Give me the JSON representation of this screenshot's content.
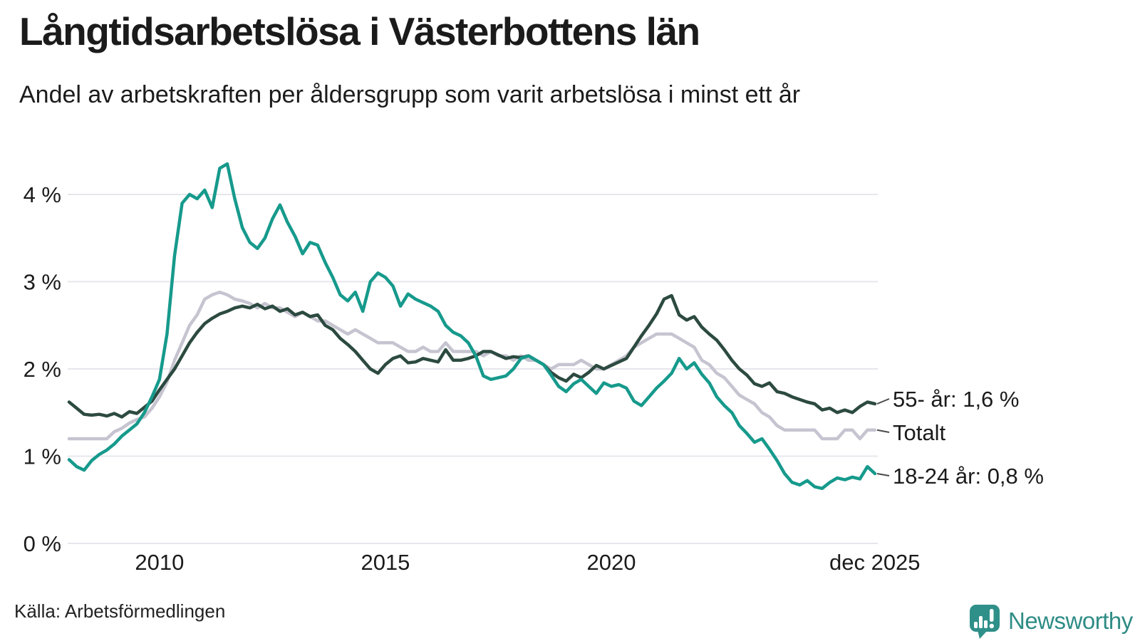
{
  "header": {
    "title": "Långtidsarbetslösa i Västerbottens län",
    "subtitle": "Andel av arbetskraften per åldersgrupp som varit arbetslösa i minst ett år"
  },
  "footer": {
    "source": "Källa: Arbetsförmedlingen",
    "brand": "Newsworthy"
  },
  "colors": {
    "teal_series": "#169a8c",
    "dark_green_series": "#2c4a40",
    "gray_series": "#c6c4d0",
    "gridline": "#e7e6ec",
    "text": "#1b1b1b",
    "connector": "#4a4a4a",
    "logo_teal": "#2f9089",
    "logo_text": "#2e8c85"
  },
  "chart_data": {
    "type": "line",
    "title": "Långtidsarbetslösa i Västerbottens län",
    "subtitle": "Andel av arbetskraften per åldersgrupp som varit arbetslösa i minst ett år",
    "unit": "%",
    "grid": true,
    "legend_position": "right-end-labels",
    "x_start_year": 2008.0,
    "x_step_years": 0.1667,
    "x_end_label": "dec 2025",
    "ylim": [
      0,
      4.7
    ],
    "y_ticks": [
      {
        "value": 0,
        "label": "0 %"
      },
      {
        "value": 1,
        "label": "1 %"
      },
      {
        "value": 2,
        "label": "2 %"
      },
      {
        "value": 3,
        "label": "3 %"
      },
      {
        "value": 4,
        "label": "4 %"
      }
    ],
    "x_ticks": [
      {
        "year": 2010.0,
        "label": "2010"
      },
      {
        "year": 2015.0,
        "label": "2015"
      },
      {
        "year": 2020.0,
        "label": "2020"
      },
      {
        "year": 2025.83,
        "label": "dec 2025"
      }
    ],
    "series": [
      {
        "name": "Totalt",
        "end_label": "Totalt",
        "end_value_text": "",
        "color": "#c6c4d0",
        "values": [
          1.2,
          1.2,
          1.2,
          1.2,
          1.2,
          1.2,
          1.28,
          1.32,
          1.38,
          1.42,
          1.45,
          1.55,
          1.68,
          1.85,
          2.1,
          2.3,
          2.5,
          2.62,
          2.8,
          2.85,
          2.88,
          2.85,
          2.8,
          2.78,
          2.75,
          2.7,
          2.75,
          2.7,
          2.7,
          2.65,
          2.6,
          2.65,
          2.6,
          2.55,
          2.55,
          2.5,
          2.45,
          2.4,
          2.45,
          2.4,
          2.35,
          2.3,
          2.3,
          2.3,
          2.25,
          2.2,
          2.2,
          2.25,
          2.2,
          2.2,
          2.3,
          2.2,
          2.2,
          2.2,
          2.2,
          2.15,
          2.2,
          2.15,
          2.15,
          2.1,
          2.15,
          2.1,
          2.1,
          2.05,
          2.0,
          2.05,
          2.05,
          2.05,
          2.1,
          2.05,
          2.0,
          2.0,
          2.05,
          2.1,
          2.15,
          2.25,
          2.3,
          2.35,
          2.4,
          2.4,
          2.4,
          2.35,
          2.3,
          2.25,
          2.1,
          2.05,
          1.95,
          1.9,
          1.8,
          1.7,
          1.65,
          1.6,
          1.5,
          1.45,
          1.35,
          1.3,
          1.3,
          1.3,
          1.3,
          1.3,
          1.2,
          1.2,
          1.2,
          1.3,
          1.3,
          1.2,
          1.3,
          1.3
        ]
      },
      {
        "name": "55- år",
        "end_label": "55- år: 1,6 %",
        "end_value_text": "1,6 %",
        "color": "#2c4a40",
        "values": [
          1.62,
          1.55,
          1.48,
          1.47,
          1.48,
          1.46,
          1.49,
          1.45,
          1.51,
          1.49,
          1.56,
          1.63,
          1.76,
          1.88,
          2.0,
          2.15,
          2.3,
          2.42,
          2.52,
          2.58,
          2.63,
          2.66,
          2.7,
          2.72,
          2.7,
          2.74,
          2.69,
          2.72,
          2.66,
          2.69,
          2.62,
          2.65,
          2.6,
          2.62,
          2.5,
          2.45,
          2.35,
          2.28,
          2.2,
          2.1,
          2.0,
          1.95,
          2.05,
          2.12,
          2.15,
          2.07,
          2.08,
          2.12,
          2.1,
          2.08,
          2.22,
          2.1,
          2.1,
          2.12,
          2.15,
          2.2,
          2.2,
          2.16,
          2.12,
          2.14,
          2.13,
          2.15,
          2.1,
          2.05,
          1.96,
          1.9,
          1.86,
          1.94,
          1.9,
          1.96,
          2.04,
          2.0,
          2.04,
          2.08,
          2.12,
          2.25,
          2.38,
          2.5,
          2.63,
          2.8,
          2.84,
          2.62,
          2.56,
          2.6,
          2.48,
          2.4,
          2.33,
          2.22,
          2.1,
          2.0,
          1.93,
          1.83,
          1.8,
          1.84,
          1.74,
          1.72,
          1.68,
          1.65,
          1.62,
          1.6,
          1.53,
          1.55,
          1.5,
          1.53,
          1.5,
          1.57,
          1.62,
          1.6
        ]
      },
      {
        "name": "18-24 år",
        "end_label": "18-24 år: 0,8 %",
        "end_value_text": "0,8 %",
        "color": "#169a8c",
        "values": [
          0.96,
          0.88,
          0.84,
          0.95,
          1.02,
          1.07,
          1.14,
          1.23,
          1.3,
          1.37,
          1.5,
          1.68,
          1.88,
          2.4,
          3.3,
          3.9,
          4.0,
          3.95,
          4.05,
          3.85,
          4.3,
          4.35,
          3.95,
          3.62,
          3.45,
          3.38,
          3.5,
          3.72,
          3.88,
          3.68,
          3.52,
          3.32,
          3.45,
          3.42,
          3.22,
          3.05,
          2.85,
          2.78,
          2.88,
          2.66,
          3.0,
          3.1,
          3.05,
          2.95,
          2.72,
          2.86,
          2.8,
          2.76,
          2.72,
          2.66,
          2.5,
          2.42,
          2.38,
          2.3,
          2.15,
          1.92,
          1.88,
          1.9,
          1.92,
          2.0,
          2.12,
          2.15,
          2.1,
          2.05,
          1.93,
          1.8,
          1.74,
          1.83,
          1.88,
          1.8,
          1.72,
          1.84,
          1.8,
          1.82,
          1.78,
          1.63,
          1.58,
          1.68,
          1.78,
          1.86,
          1.95,
          2.12,
          2.0,
          2.07,
          1.94,
          1.84,
          1.68,
          1.58,
          1.5,
          1.35,
          1.26,
          1.16,
          1.2,
          1.08,
          0.95,
          0.8,
          0.7,
          0.67,
          0.72,
          0.65,
          0.63,
          0.7,
          0.75,
          0.73,
          0.76,
          0.74,
          0.88,
          0.8
        ]
      }
    ]
  }
}
